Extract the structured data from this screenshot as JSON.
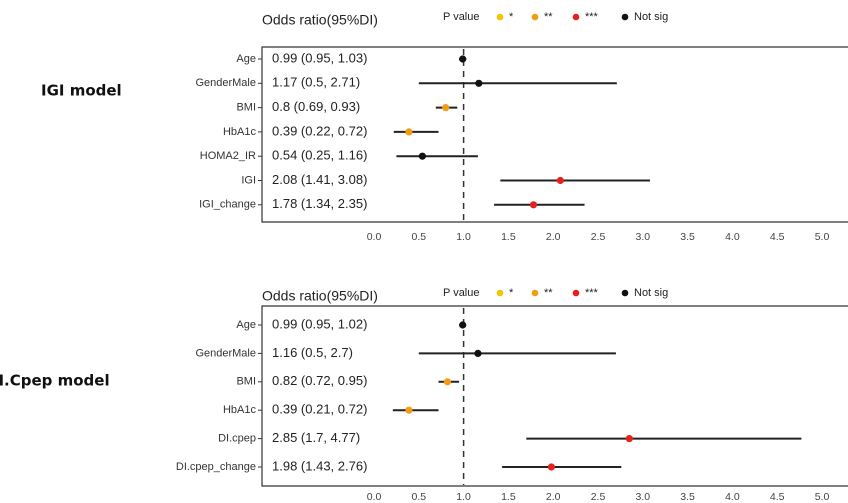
{
  "chart_data": [
    {
      "type": "forest",
      "model_label": "IGI model",
      "column_title": "Odds ratio(95%DI)",
      "legend_title": "P value",
      "legend": [
        {
          "label": "*",
          "color": "#f5c400"
        },
        {
          "label": "**",
          "color": "#f39c12"
        },
        {
          "label": "***",
          "color": "#e8201c"
        },
        {
          "label": "Not sig",
          "color": "#111111"
        }
      ],
      "reference_line": 1.0,
      "xlim": [
        0.0,
        5.0
      ],
      "xticks": [
        "0.0",
        "0.5",
        "1.0",
        "1.5",
        "2.0",
        "2.5",
        "3.0",
        "3.5",
        "4.0",
        "4.5",
        "5.0"
      ],
      "rows": [
        {
          "variable": "Age",
          "or_text": "0.99 (0.95, 1.03)",
          "or": 0.99,
          "lower": 0.95,
          "upper": 1.03,
          "sig": "Not sig"
        },
        {
          "variable": "GenderMale",
          "or_text": "1.17 (0.5, 2.71)",
          "or": 1.17,
          "lower": 0.5,
          "upper": 2.71,
          "sig": "Not sig"
        },
        {
          "variable": "BMI",
          "or_text": "0.8 (0.69, 0.93)",
          "or": 0.8,
          "lower": 0.69,
          "upper": 0.93,
          "sig": "**"
        },
        {
          "variable": "HbA1c",
          "or_text": "0.39 (0.22, 0.72)",
          "or": 0.39,
          "lower": 0.22,
          "upper": 0.72,
          "sig": "**"
        },
        {
          "variable": "HOMA2_IR",
          "or_text": "0.54 (0.25, 1.16)",
          "or": 0.54,
          "lower": 0.25,
          "upper": 1.16,
          "sig": "Not sig"
        },
        {
          "variable": "IGI",
          "or_text": "2.08 (1.41, 3.08)",
          "or": 2.08,
          "lower": 1.41,
          "upper": 3.08,
          "sig": "***"
        },
        {
          "variable": "IGI_change",
          "or_text": "1.78 (1.34, 2.35)",
          "or": 1.78,
          "lower": 1.34,
          "upper": 2.35,
          "sig": "***"
        }
      ]
    },
    {
      "type": "forest",
      "model_label": "DI.Cpep model",
      "column_title": "Odds ratio(95%DI)",
      "legend_title": "P value",
      "legend": [
        {
          "label": "*",
          "color": "#f5c400"
        },
        {
          "label": "**",
          "color": "#f39c12"
        },
        {
          "label": "***",
          "color": "#e8201c"
        },
        {
          "label": "Not sig",
          "color": "#111111"
        }
      ],
      "reference_line": 1.0,
      "xlim": [
        0.0,
        5.0
      ],
      "xticks": [
        "0.0",
        "0.5",
        "1.0",
        "1.5",
        "2.0",
        "2.5",
        "3.0",
        "3.5",
        "4.0",
        "4.5",
        "5.0"
      ],
      "rows": [
        {
          "variable": "Age",
          "or_text": "0.99 (0.95, 1.02)",
          "or": 0.99,
          "lower": 0.95,
          "upper": 1.02,
          "sig": "Not sig"
        },
        {
          "variable": "GenderMale",
          "or_text": "1.16 (0.5, 2.7)",
          "or": 1.16,
          "lower": 0.5,
          "upper": 2.7,
          "sig": "Not sig"
        },
        {
          "variable": "BMI",
          "or_text": "0.82 (0.72, 0.95)",
          "or": 0.82,
          "lower": 0.72,
          "upper": 0.95,
          "sig": "**"
        },
        {
          "variable": "HbA1c",
          "or_text": "0.39 (0.21, 0.72)",
          "or": 0.39,
          "lower": 0.21,
          "upper": 0.72,
          "sig": "**"
        },
        {
          "variable": "DI.cpep",
          "or_text": "2.85 (1.7, 4.77)",
          "or": 2.85,
          "lower": 1.7,
          "upper": 4.77,
          "sig": "***"
        },
        {
          "variable": "DI.cpep_change",
          "or_text": "1.98 (1.43, 2.76)",
          "or": 1.98,
          "lower": 1.43,
          "upper": 2.76,
          "sig": "***"
        }
      ]
    }
  ]
}
